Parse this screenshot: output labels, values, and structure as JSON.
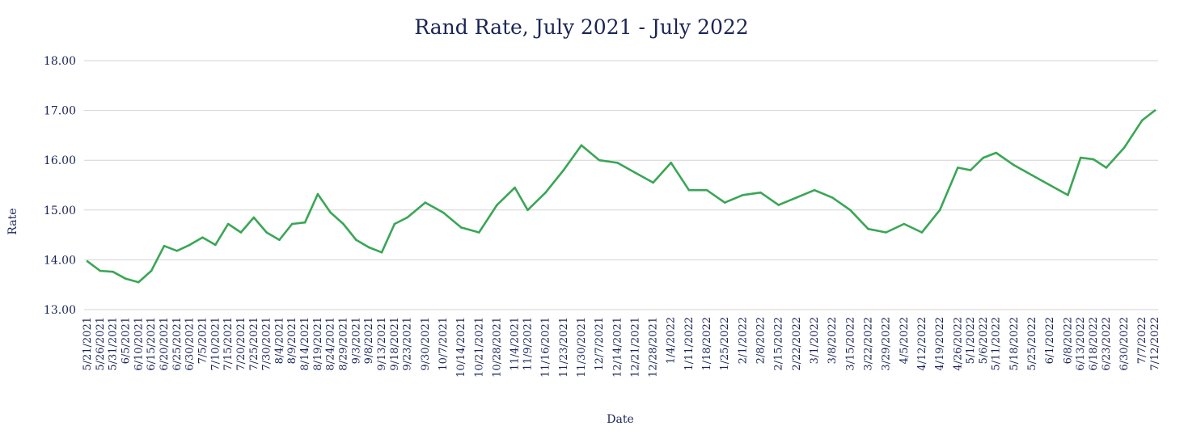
{
  "chart_data": {
    "type": "line",
    "title": "Rand Rate, July 2021 - July 2022",
    "xlabel": "Date",
    "ylabel": "Rate",
    "ylim": [
      13.0,
      18.0
    ],
    "y_ticks": [
      "13.00",
      "14.00",
      "15.00",
      "16.00",
      "17.00",
      "18.00"
    ],
    "y_tick_values": [
      13,
      14,
      15,
      16,
      17,
      18
    ],
    "grid": true,
    "legend": "none",
    "line_color": "#3aa655",
    "x_tick_labels": [
      "5/21/2021",
      "5/26/2021",
      "5/31/2021",
      "6/5/2021",
      "6/10/2021",
      "6/15/2021",
      "6/20/2021",
      "6/25/2021",
      "6/30/2021",
      "7/5/2021",
      "7/10/2021",
      "7/15/2021",
      "7/20/2021",
      "7/25/2021",
      "7/30/2021",
      "8/4/2021",
      "8/9/2021",
      "8/14/2021",
      "8/19/2021",
      "8/24/2021",
      "8/29/2021",
      "9/3/2021",
      "9/8/2021",
      "9/13/2021",
      "9/18/2021",
      "9/23/2021",
      "9/30/2021",
      "10/7/2021",
      "10/14/2021",
      "10/21/2021",
      "10/28/2021",
      "11/4/2021",
      "11/9/2021",
      "11/16/2021",
      "11/23/2021",
      "11/30/2021",
      "12/7/2021",
      "12/14/2021",
      "12/21/2021",
      "12/28/2021",
      "1/4/2022",
      "1/11/2022",
      "1/18/2022",
      "1/25/2022",
      "2/1/2022",
      "2/8/2022",
      "2/15/2022",
      "2/22/2022",
      "3/1/2022",
      "3/8/2022",
      "3/15/2022",
      "3/22/2022",
      "3/29/2022",
      "4/5/2022",
      "4/12/2022",
      "4/19/2022",
      "4/26/2022",
      "5/1/2022",
      "5/6/2022",
      "5/11/2022",
      "5/18/2022",
      "5/25/2022",
      "6/1/2022",
      "6/8/2022",
      "6/13/2022",
      "6/18/2022",
      "6/23/2022",
      "6/30/2022",
      "7/7/2022",
      "7/12/2022"
    ],
    "series": [
      {
        "x": [
          "5/21/2021",
          "5/26/2021",
          "5/31/2021",
          "6/5/2021",
          "6/10/2021",
          "6/15/2021",
          "6/20/2021",
          "6/25/2021",
          "6/30/2021",
          "7/5/2021",
          "7/10/2021",
          "7/15/2021",
          "7/20/2021",
          "7/25/2021",
          "7/30/2021",
          "8/4/2021",
          "8/9/2021",
          "8/14/2021",
          "8/19/2021",
          "8/24/2021",
          "8/29/2021",
          "9/3/2021",
          "9/8/2021",
          "9/13/2021",
          "9/18/2021",
          "9/23/2021",
          "9/30/2021",
          "10/7/2021",
          "10/14/2021",
          "10/21/2021",
          "10/28/2021",
          "11/4/2021",
          "11/9/2021",
          "11/16/2021",
          "11/23/2021",
          "11/30/2021",
          "12/7/2021",
          "12/14/2021",
          "12/21/2021",
          "12/28/2021",
          "1/4/2022",
          "1/11/2022",
          "1/18/2022",
          "1/25/2022",
          "2/1/2022",
          "2/8/2022",
          "2/15/2022",
          "2/22/2022",
          "3/1/2022",
          "3/8/2022",
          "3/15/2022",
          "3/22/2022",
          "3/29/2022",
          "4/5/2022",
          "4/12/2022",
          "4/19/2022",
          "4/26/2022",
          "5/1/2022",
          "5/6/2022",
          "5/11/2022",
          "5/18/2022",
          "5/25/2022",
          "6/1/2022",
          "6/8/2022",
          "6/13/2022",
          "6/18/2022",
          "6/23/2022",
          "6/30/2022",
          "7/7/2022",
          "7/12/2022"
        ],
        "values": [
          13.97,
          13.78,
          13.76,
          13.62,
          13.55,
          13.78,
          14.28,
          14.18,
          14.3,
          14.45,
          14.3,
          14.72,
          14.55,
          14.85,
          14.55,
          14.4,
          14.72,
          14.75,
          15.32,
          14.95,
          14.72,
          14.4,
          14.25,
          14.15,
          14.72,
          14.85,
          15.15,
          14.95,
          14.65,
          14.55,
          15.1,
          15.45,
          15.0,
          15.35,
          15.8,
          16.3,
          16.0,
          15.95,
          15.75,
          15.55,
          15.95,
          15.4,
          15.4,
          15.15,
          15.3,
          15.35,
          15.1,
          15.25,
          15.4,
          15.25,
          15.0,
          14.62,
          14.55,
          14.72,
          14.55,
          15.0,
          15.85,
          15.8,
          16.05,
          16.15,
          15.9,
          15.7,
          15.5,
          15.3,
          16.05,
          16.02,
          15.85,
          16.25,
          16.8,
          17.0
        ]
      }
    ]
  }
}
